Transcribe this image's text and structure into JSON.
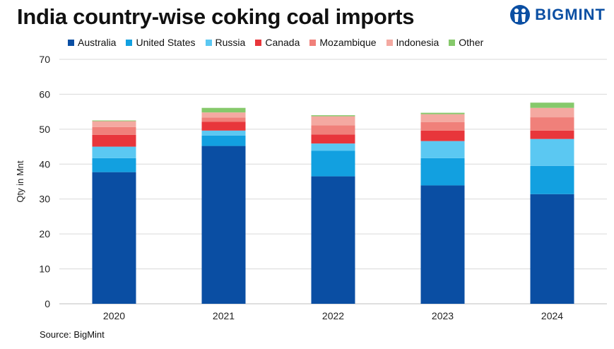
{
  "header": {
    "title": "India country-wise coking coal imports",
    "brand": "BIGMINT"
  },
  "source_note": "Source: BigMint",
  "colors": {
    "brand": "#0b4fa3"
  },
  "chart_data": {
    "type": "bar",
    "stacked": true,
    "title": "India country-wise coking coal imports",
    "xlabel": "",
    "ylabel": "Qty in Mnt",
    "categories": [
      "2020",
      "2021",
      "2022",
      "2023",
      "2024"
    ],
    "ylim": [
      0,
      70
    ],
    "yticks": [
      0,
      10,
      20,
      30,
      40,
      50,
      60,
      70
    ],
    "grid": true,
    "legend_position": "top",
    "series": [
      {
        "name": "Australia",
        "color": "#0a4ea3",
        "values": [
          37.7,
          45.2,
          36.5,
          33.9,
          31.4
        ]
      },
      {
        "name": "United States",
        "color": "#12a0e0",
        "values": [
          4.0,
          3.0,
          7.3,
          7.8,
          8.1
        ]
      },
      {
        "name": "Russia",
        "color": "#5bc8f2",
        "values": [
          3.3,
          1.4,
          2.1,
          4.9,
          7.7
        ]
      },
      {
        "name": "Canada",
        "color": "#e8363b",
        "values": [
          3.4,
          2.5,
          2.6,
          3.0,
          2.4
        ]
      },
      {
        "name": "Mozambique",
        "color": "#f0807a",
        "values": [
          2.2,
          1.2,
          2.6,
          2.4,
          3.8
        ]
      },
      {
        "name": "Indonesia",
        "color": "#f4a9a1",
        "values": [
          1.7,
          1.5,
          2.6,
          2.3,
          2.7
        ]
      },
      {
        "name": "Other",
        "color": "#86c96b",
        "values": [
          0.2,
          1.3,
          0.3,
          0.4,
          1.5
        ]
      }
    ]
  }
}
